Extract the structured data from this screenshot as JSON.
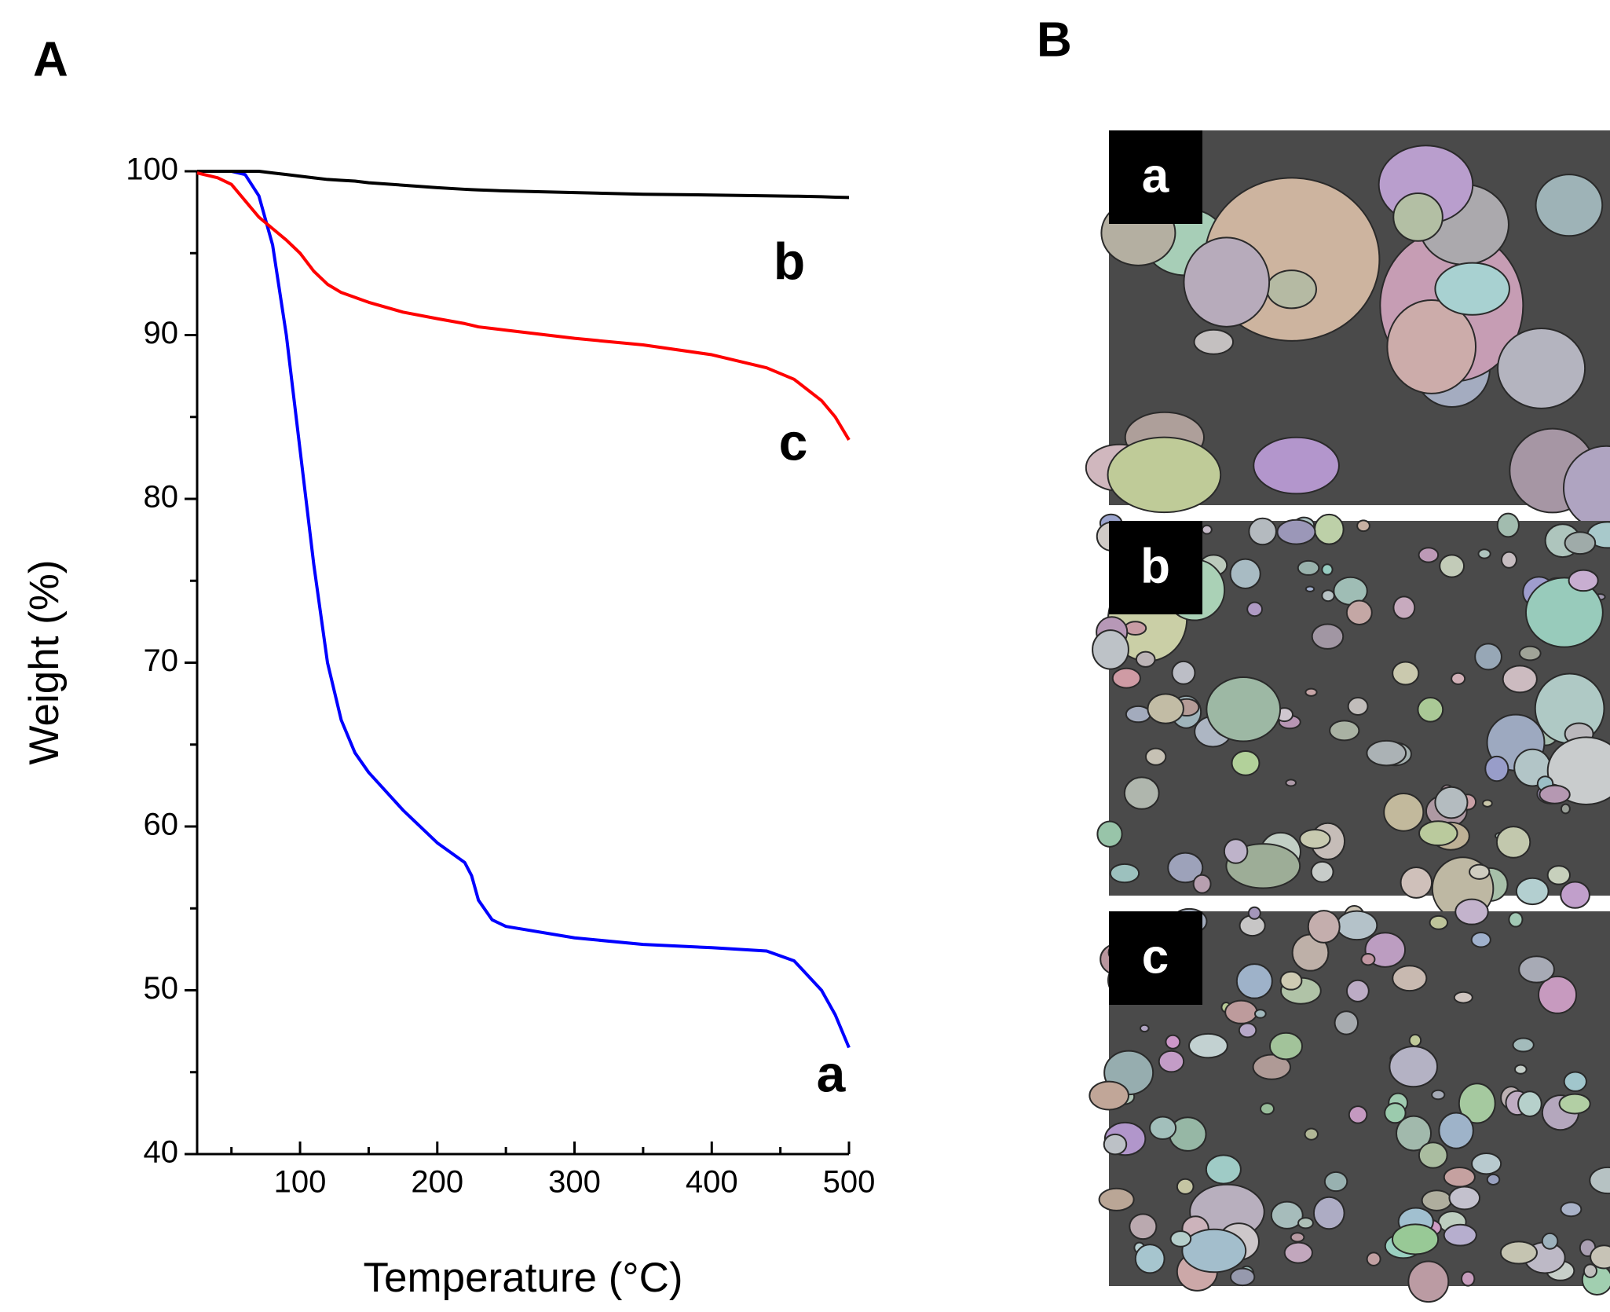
{
  "panel_labels": [
    "A",
    "B"
  ],
  "chart_data": {
    "type": "line",
    "xlabel": "Temperature (°C)",
    "ylabel": "Weight (%)",
    "x": [
      25,
      40,
      50,
      60,
      70,
      80,
      90,
      100,
      110,
      120,
      130,
      140,
      150,
      175,
      200,
      220,
      225,
      230,
      240,
      250,
      300,
      350,
      400,
      440,
      460,
      480,
      490,
      500
    ],
    "series": [
      {
        "name": "a",
        "color": "#0000ff",
        "values": [
          100,
          100,
          100,
          99.8,
          98.5,
          95.5,
          90,
          83,
          76,
          70,
          66.5,
          64.5,
          63.3,
          61,
          59,
          57.8,
          57,
          55.5,
          54.3,
          53.9,
          53.2,
          52.8,
          52.6,
          52.4,
          51.8,
          50,
          48.5,
          46.5
        ]
      },
      {
        "name": "b",
        "color": "#000000",
        "values": [
          100,
          100,
          100,
          100,
          100,
          99.9,
          99.8,
          99.7,
          99.6,
          99.5,
          99.45,
          99.4,
          99.3,
          99.15,
          99,
          98.9,
          98.88,
          98.86,
          98.83,
          98.8,
          98.7,
          98.6,
          98.55,
          98.5,
          98.48,
          98.45,
          98.42,
          98.4
        ]
      },
      {
        "name": "c",
        "color": "#ff0000",
        "values": [
          99.9,
          99.6,
          99.2,
          98.2,
          97.2,
          96.5,
          95.8,
          95,
          93.9,
          93.1,
          92.6,
          92.3,
          92,
          91.4,
          91,
          90.7,
          90.6,
          90.5,
          90.4,
          90.3,
          89.8,
          89.4,
          88.8,
          88,
          87.3,
          86,
          85,
          83.6
        ]
      }
    ],
    "xlim": [
      25,
      500
    ],
    "xticks": [
      100,
      200,
      300,
      400,
      500
    ],
    "ylim": [
      40,
      100
    ],
    "yticks": [
      40,
      50,
      60,
      70,
      80,
      90,
      100
    ]
  },
  "images": [
    {
      "label": "a"
    },
    {
      "label": "b"
    },
    {
      "label": "c"
    }
  ]
}
